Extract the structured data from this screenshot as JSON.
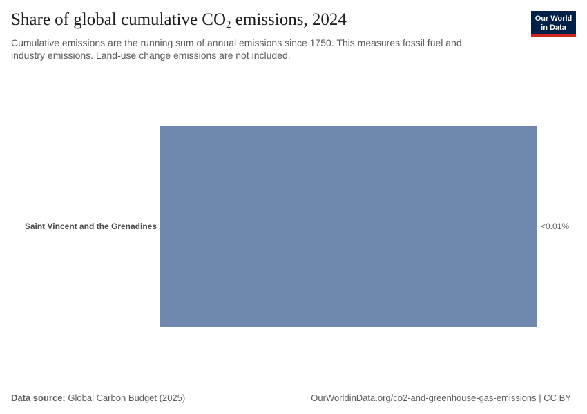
{
  "header": {
    "title_main": "Share of global cumulative CO",
    "title_sub": "2",
    "title_end": " emissions, 2024",
    "subtitle": "Cumulative emissions are the running sum of annual emissions since 1750. This measures fossil fuel and industry emissions. Land-use change emissions are not included.",
    "logo_line1": "Our World",
    "logo_line2": "in Data"
  },
  "chart_data": {
    "type": "bar",
    "orientation": "horizontal",
    "categories": [
      "Saint Vincent and the Grenadines"
    ],
    "values": [
      0.01
    ],
    "value_labels": [
      "<0.01%"
    ],
    "unit": "%",
    "bar_color": "#6f88b0"
  },
  "footer": {
    "source_label": "Data source:",
    "source_text": "Global Carbon Budget (2025)",
    "url_text": "OurWorldinData.org/co2-and-greenhouse-gas-emissions | CC BY"
  }
}
